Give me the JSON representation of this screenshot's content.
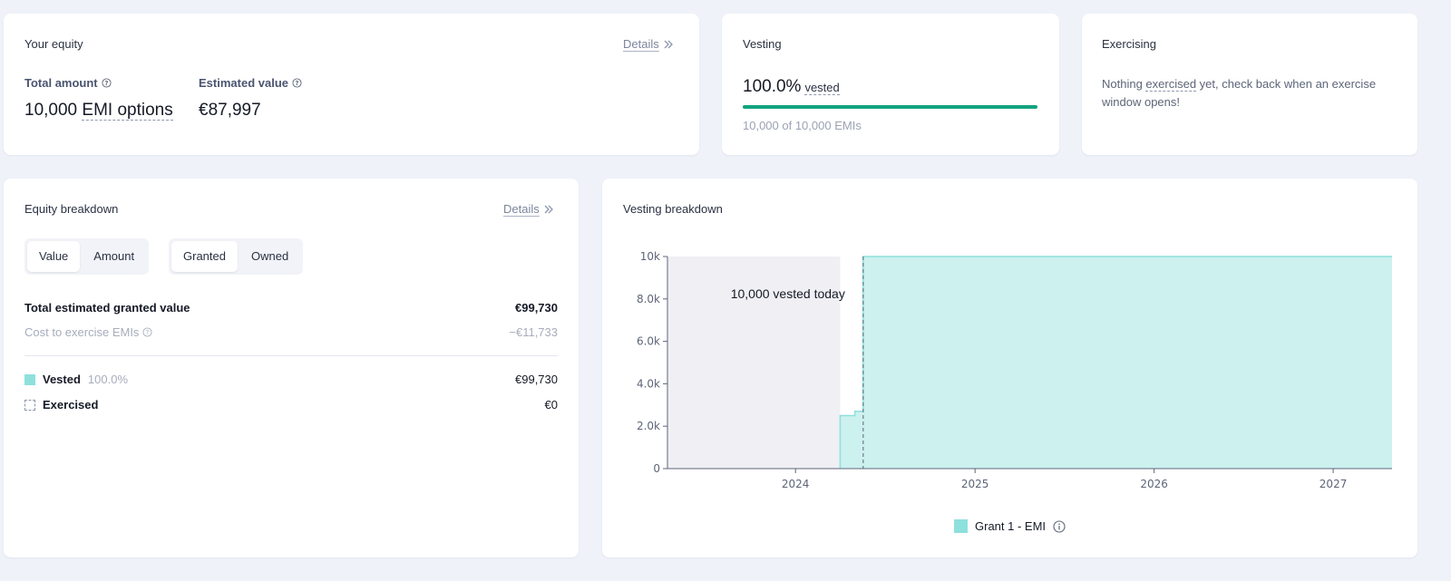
{
  "your_equity": {
    "title": "Your equity",
    "details_label": "Details",
    "total_amount_label": "Total amount",
    "total_amount_number": "10,000",
    "total_amount_unit": "EMI options",
    "estimated_value_label": "Estimated value",
    "estimated_value": "€87,997"
  },
  "vesting": {
    "title": "Vesting",
    "percent": "100.0%",
    "percent_suffix": "vested",
    "progress_fraction": 1.0,
    "sub": "10,000 of 10,000 EMIs"
  },
  "exercising": {
    "title": "Exercising",
    "message_pre": "Nothing ",
    "message_term": "exercised",
    "message_post": " yet, check back when an exercise window opens!"
  },
  "equity_breakdown": {
    "title": "Equity breakdown",
    "details_label": "Details",
    "toggle_metric": [
      "Value",
      "Amount"
    ],
    "toggle_scope": [
      "Granted",
      "Owned"
    ],
    "total_label": "Total estimated granted value",
    "total_value": "€99,730",
    "cost_label": "Cost to exercise EMIs",
    "cost_value": "−€11,733",
    "vested_label": "Vested",
    "vested_pct": "100.0%",
    "vested_value": "€99,730",
    "exercised_label": "Exercised",
    "exercised_value": "€0"
  },
  "vesting_breakdown": {
    "title": "Vesting breakdown",
    "annotation": "10,000 vested today",
    "legend_label": "Grant 1 - EMI"
  },
  "colors": {
    "accent_green": "#10a37f",
    "vested_fill": "#ccf1ef",
    "vested_line": "#8ee0dc",
    "past_region": "#f0eff3"
  },
  "chart_data": {
    "type": "area",
    "title": "Vesting breakdown",
    "x_ticks": [
      "2024",
      "2025",
      "2026",
      "2027"
    ],
    "y_ticks": [
      "0",
      "2.0k",
      "4.0k",
      "6.0k",
      "8.0k",
      "10k"
    ],
    "ylim": [
      0,
      10000
    ],
    "xlim": [
      "2023-04-15",
      "2027-05-01"
    ],
    "today": "2024-05-18",
    "series": [
      {
        "name": "Grant 1 - EMI",
        "points": [
          [
            "2024-04-01",
            0
          ],
          [
            "2024-04-01",
            2500
          ],
          [
            "2024-05-01",
            2500
          ],
          [
            "2024-05-01",
            2700
          ],
          [
            "2024-05-18",
            2700
          ],
          [
            "2024-05-18",
            10000
          ],
          [
            "2027-05-01",
            10000
          ]
        ]
      }
    ]
  }
}
